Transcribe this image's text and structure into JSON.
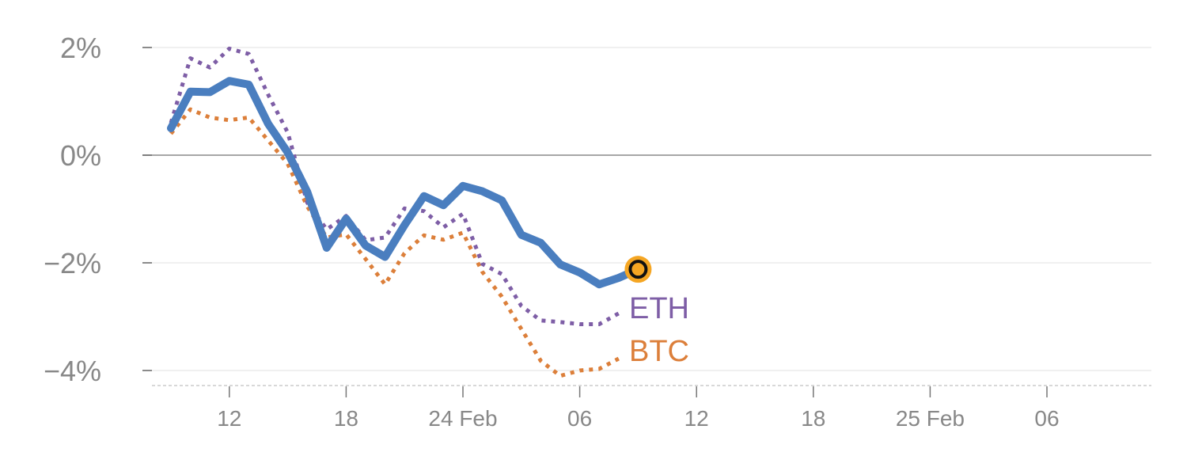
{
  "chart_data": {
    "type": "line",
    "ylim": [
      -4.3,
      2.2
    ],
    "y_ticks": [
      {
        "value": 2,
        "label": "2%"
      },
      {
        "value": 0,
        "label": "0%"
      },
      {
        "value": -2,
        "label": "−2%"
      },
      {
        "value": -4,
        "label": "−4%"
      }
    ],
    "x_ticks": [
      {
        "index": 3,
        "label": "12"
      },
      {
        "index": 9,
        "label": "18"
      },
      {
        "index": 15,
        "label": "24 Feb"
      },
      {
        "index": 21,
        "label": "06"
      },
      {
        "index": 27,
        "label": "12"
      },
      {
        "index": 33,
        "label": "18"
      },
      {
        "index": 39,
        "label": "25 Feb"
      },
      {
        "index": 45,
        "label": "06"
      }
    ],
    "x_range": [
      -1.5,
      50.5
    ],
    "grid": true,
    "series": [
      {
        "name": "",
        "style": "solid",
        "color": "#4a7ebf",
        "start_index": 0,
        "values": [
          0.5,
          1.18,
          1.17,
          1.38,
          1.31,
          0.58,
          0.05,
          -0.68,
          -1.72,
          -1.18,
          -1.68,
          -1.89,
          -1.3,
          -0.76,
          -0.93,
          -0.57,
          -0.67,
          -0.84,
          -1.48,
          -1.63,
          -2.03,
          -2.18,
          -2.4,
          -2.28,
          -2.12
        ],
        "end_marker": true
      },
      {
        "name": "ETH",
        "style": "dotted",
        "color": "#7e5ea6",
        "start_index": 0,
        "values": [
          0.6,
          1.8,
          1.63,
          1.98,
          1.88,
          1.12,
          0.42,
          -0.88,
          -1.38,
          -1.13,
          -1.58,
          -1.53,
          -0.99,
          -1.04,
          -1.34,
          -1.09,
          -2.02,
          -2.21,
          -2.8,
          -3.07,
          -3.1,
          -3.14,
          -3.14,
          -2.94
        ]
      },
      {
        "name": "BTC",
        "style": "dotted",
        "color": "#dc7f3a",
        "start_index": 0,
        "values": [
          0.4,
          0.85,
          0.7,
          0.65,
          0.7,
          0.27,
          -0.16,
          -0.95,
          -1.53,
          -1.47,
          -1.93,
          -2.4,
          -1.82,
          -1.49,
          -1.57,
          -1.44,
          -2.17,
          -2.63,
          -3.23,
          -3.82,
          -4.1,
          -4.0,
          -3.97,
          -3.78
        ]
      }
    ],
    "labels": {
      "eth": "ETH",
      "btc": "BTC"
    }
  },
  "colors": {
    "main": "#4a7ebf",
    "eth": "#7e5ea6",
    "btc": "#dc7f3a",
    "marker_fill": "#f5a623",
    "axis_text": "#888888",
    "grid": "#e8e8e8",
    "zero_line": "#8a8a8a"
  }
}
